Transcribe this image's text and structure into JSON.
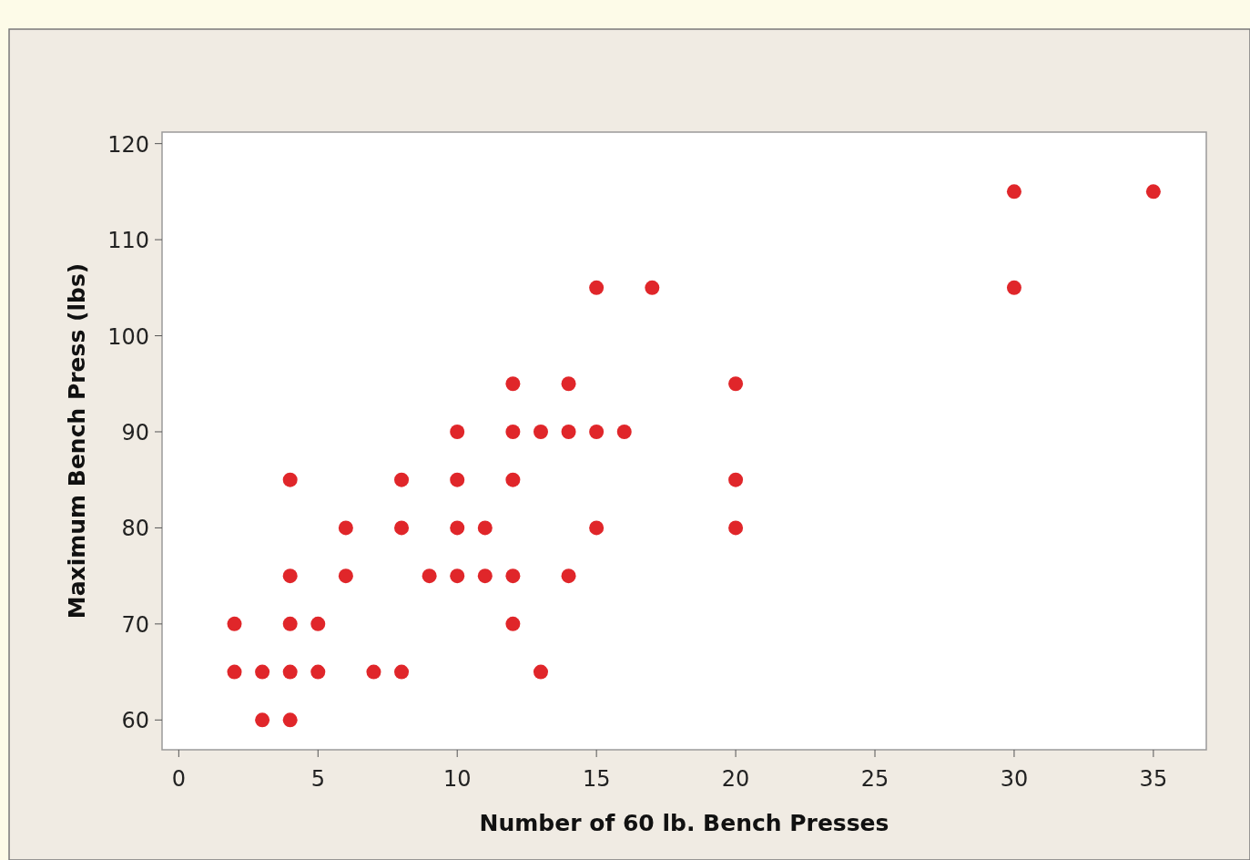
{
  "chart_data": {
    "type": "scatter",
    "xlabel": "Number of 60 lb. Bench Presses",
    "ylabel": "Maximum Bench Press (lbs)",
    "xlim": [
      -0.6,
      36.9
    ],
    "ylim": [
      56.9,
      121.2
    ],
    "xticks": [
      0,
      5,
      10,
      15,
      20,
      25,
      30,
      35
    ],
    "yticks": [
      60,
      70,
      80,
      90,
      100,
      110,
      120
    ],
    "marker": "circle",
    "grid": false,
    "series": [
      {
        "color": "#e0262a",
        "x": [
          30,
          35,
          15,
          17,
          30,
          12,
          14,
          20,
          10,
          12,
          13,
          14,
          15,
          16,
          4,
          8,
          10,
          12,
          20,
          6,
          8,
          10,
          11,
          15,
          20,
          4,
          6,
          9,
          10,
          11,
          12,
          14,
          2,
          4,
          5,
          12,
          2,
          3,
          4,
          5,
          7,
          8,
          13,
          3,
          4
        ],
        "values": [
          115,
          115,
          105,
          105,
          105,
          95,
          95,
          95,
          90,
          90,
          90,
          90,
          90,
          90,
          85,
          85,
          85,
          85,
          85,
          80,
          80,
          80,
          80,
          80,
          80,
          75,
          75,
          75,
          75,
          75,
          75,
          75,
          70,
          70,
          70,
          70,
          65,
          65,
          65,
          65,
          65,
          65,
          65,
          60,
          60
        ]
      }
    ]
  }
}
